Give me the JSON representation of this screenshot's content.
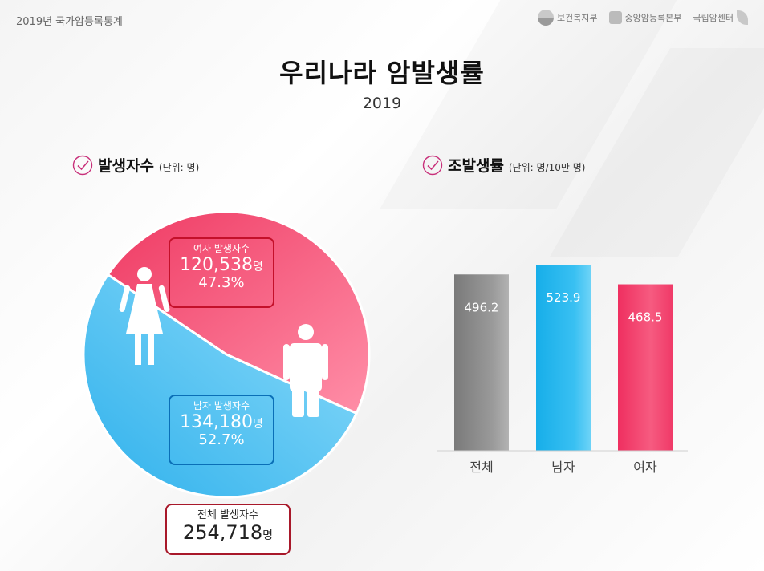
{
  "header": {
    "report_title": "2019년 국가암등록통계",
    "logos": [
      {
        "name": "보건복지부",
        "icon": "taegeuk-icon"
      },
      {
        "name": "중앙암등록본부",
        "icon": "registry-icon"
      },
      {
        "name": "국립암센터",
        "icon": "leaf-icon"
      }
    ]
  },
  "title": "우리나라 암발생률",
  "year": "2019",
  "left_section": {
    "heading": "발생자수",
    "unit": "(단위: 명)"
  },
  "right_section": {
    "heading": "조발생률",
    "unit": "(단위: 명/10만 명)"
  },
  "callouts": {
    "female": {
      "label": "여자 발생자수",
      "value": "120,538",
      "suffix": "명",
      "percent": "47.3%"
    },
    "male": {
      "label": "남자 발생자수",
      "value": "134,180",
      "suffix": "명",
      "percent": "52.7%"
    },
    "total": {
      "label": "전체 발생자수",
      "value": "254,718",
      "suffix": "명"
    }
  },
  "colors": {
    "female": "#f2436a",
    "male": "#3fbef2",
    "total": "#8a8a8a",
    "accent": "#c0102a",
    "check": "#c8307a"
  },
  "chart_data": [
    {
      "type": "pie",
      "categories": [
        "여자",
        "남자"
      ],
      "values": [
        120538,
        134180
      ],
      "percent_labels": [
        "47.3%",
        "52.7%"
      ],
      "total": 254718
    },
    {
      "type": "bar",
      "categories": [
        "전체",
        "남자",
        "여자"
      ],
      "values": [
        496.2,
        523.9,
        468.5
      ],
      "value_labels": [
        "496.2",
        "523.9",
        "468.5"
      ],
      "colors": [
        "#8a8a8a",
        "#1fb4ec",
        "#f03a68"
      ]
    }
  ]
}
